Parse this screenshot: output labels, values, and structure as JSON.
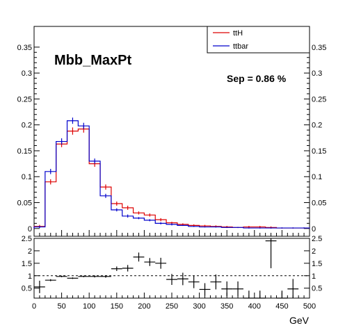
{
  "chart_data": [
    {
      "type": "histogram",
      "title": "Mbb_MaxPt",
      "annotation": "Sep = 0.86 %",
      "xlim": [
        0,
        500
      ],
      "ylim": [
        -0.015,
        0.39
      ],
      "yticks": [
        "0",
        "0.05",
        "0.1",
        "0.15",
        "0.2",
        "0.25",
        "0.3",
        "0.35"
      ],
      "bin_edges": [
        0,
        20,
        40,
        60,
        80,
        100,
        120,
        140,
        160,
        180,
        200,
        220,
        240,
        260,
        280,
        300,
        320,
        340,
        360,
        380,
        400,
        420,
        440,
        460,
        480,
        500
      ],
      "legend_position": "top-right",
      "series": [
        {
          "name": "ttH",
          "color": "#dd0000",
          "values": [
            0.004,
            0.09,
            0.163,
            0.188,
            0.192,
            0.125,
            0.08,
            0.048,
            0.04,
            0.03,
            0.026,
            0.017,
            0.011,
            0.008,
            0.006,
            0.005,
            0.004,
            0.003,
            0.002,
            0.003,
            0.003,
            0.002,
            0.001,
            0.001,
            0.001
          ],
          "errors": [
            0.003,
            0.005,
            0.006,
            0.007,
            0.007,
            0.006,
            0.005,
            0.004,
            0.004,
            0.003,
            0.003,
            0.003,
            0.002,
            0.002,
            0.002,
            0.002,
            0.002,
            0.002,
            0.001,
            0.002,
            0.002,
            0.002,
            0.001,
            0.001,
            0.001
          ]
        },
        {
          "name": "ttbar",
          "color": "#0000cc",
          "values": [
            0.003,
            0.11,
            0.168,
            0.208,
            0.198,
            0.13,
            0.063,
            0.036,
            0.024,
            0.02,
            0.016,
            0.01,
            0.008,
            0.006,
            0.004,
            0.003,
            0.003,
            0.002,
            0.002,
            0.001,
            0.001,
            0.001,
            0.001,
            0.001,
            0.001
          ],
          "errors": [
            0.002,
            0.005,
            0.006,
            0.006,
            0.006,
            0.005,
            0.004,
            0.003,
            0.003,
            0.002,
            0.002,
            0.002,
            0.002,
            0.001,
            0.001,
            0.001,
            0.001,
            0.001,
            0.001,
            0.001,
            0.001,
            0.001,
            0.001,
            0.001,
            0.001
          ]
        }
      ]
    },
    {
      "type": "scatter",
      "description": "ratio ttH / ttbar",
      "xlabel": "GeV",
      "xlim": [
        0,
        500
      ],
      "ylim": [
        0.1,
        2.5
      ],
      "xticks": [
        "0",
        "50",
        "100",
        "150",
        "200",
        "250",
        "300",
        "350",
        "400",
        "450",
        "500"
      ],
      "yticks": [
        "0.5",
        "1",
        "1.5",
        "2",
        "2.5"
      ],
      "reference_line": 1,
      "points": [
        {
          "x": 10,
          "y": 0.55,
          "yerr": 0.25,
          "xerr": 10
        },
        {
          "x": 30,
          "y": 0.82,
          "yerr": 0.04,
          "xerr": 10
        },
        {
          "x": 50,
          "y": 0.97,
          "yerr": 0.03,
          "xerr": 10
        },
        {
          "x": 70,
          "y": 0.9,
          "yerr": 0.03,
          "xerr": 10
        },
        {
          "x": 90,
          "y": 0.97,
          "yerr": 0.03,
          "xerr": 10
        },
        {
          "x": 110,
          "y": 0.97,
          "yerr": 0.04,
          "xerr": 10
        },
        {
          "x": 130,
          "y": 0.97,
          "yerr": 0.05,
          "xerr": 10
        },
        {
          "x": 150,
          "y": 1.28,
          "yerr": 0.09,
          "xerr": 10
        },
        {
          "x": 170,
          "y": 1.3,
          "yerr": 0.13,
          "xerr": 10
        },
        {
          "x": 190,
          "y": 1.75,
          "yerr": 0.18,
          "xerr": 10
        },
        {
          "x": 210,
          "y": 1.55,
          "yerr": 0.16,
          "xerr": 10
        },
        {
          "x": 230,
          "y": 1.5,
          "yerr": 0.22,
          "xerr": 10
        },
        {
          "x": 250,
          "y": 0.85,
          "yerr": 0.22,
          "xerr": 10
        },
        {
          "x": 270,
          "y": 0.87,
          "yerr": 0.25,
          "xerr": 10
        },
        {
          "x": 290,
          "y": 0.75,
          "yerr": 0.25,
          "xerr": 10
        },
        {
          "x": 310,
          "y": 0.45,
          "yerr": 0.25,
          "xerr": 10
        },
        {
          "x": 330,
          "y": 0.75,
          "yerr": 0.3,
          "xerr": 10
        },
        {
          "x": 350,
          "y": 0.47,
          "yerr": 0.3,
          "xerr": 10
        },
        {
          "x": 370,
          "y": 0.47,
          "yerr": 0.3,
          "xerr": 10
        },
        {
          "x": 390,
          "y": 0.05,
          "yerr": 0.35,
          "xerr": 10
        },
        {
          "x": 410,
          "y": 0.05,
          "yerr": 0.35,
          "xerr": 10
        },
        {
          "x": 430,
          "y": 2.4,
          "yerr": 1.1,
          "xerr": 10
        },
        {
          "x": 450,
          "y": 0.05,
          "yerr": 0.35,
          "xerr": 10
        },
        {
          "x": 470,
          "y": 0.47,
          "yerr": 0.4,
          "xerr": 10
        }
      ]
    }
  ]
}
